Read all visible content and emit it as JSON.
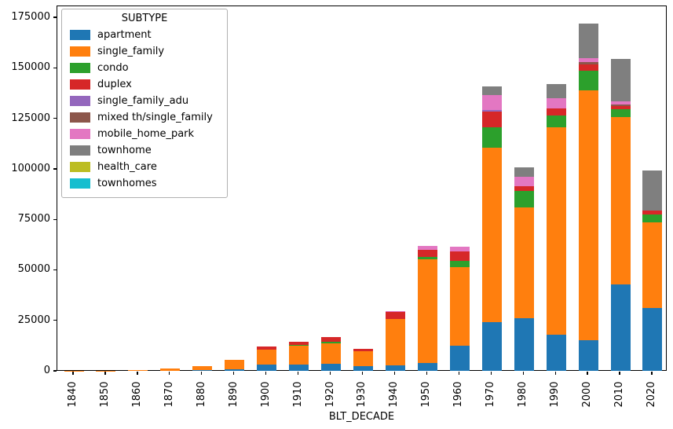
{
  "chart_data": {
    "type": "bar",
    "stacked": true,
    "title": "",
    "xlabel": "BLT_DECADE",
    "ylabel": "",
    "legend_title": "SUBTYPE",
    "legend_position": "upper left",
    "grid": false,
    "categories": [
      "1840",
      "1850",
      "1860",
      "1870",
      "1880",
      "1890",
      "1900",
      "1910",
      "1920",
      "1930",
      "1940",
      "1950",
      "1960",
      "1970",
      "1980",
      "1990",
      "2000",
      "2010",
      "2020"
    ],
    "series": [
      {
        "name": "apartment",
        "color": "#1f77b4",
        "values": [
          0,
          0,
          0,
          0,
          200,
          700,
          3100,
          3100,
          3600,
          2300,
          2700,
          4000,
          12400,
          24100,
          26000,
          18000,
          15000,
          42900,
          31200
        ]
      },
      {
        "name": "single_family",
        "color": "#ff7f0e",
        "values": [
          40,
          80,
          200,
          1000,
          2100,
          4800,
          7400,
          9400,
          10100,
          7500,
          23000,
          51200,
          39100,
          86200,
          54900,
          102700,
          123800,
          82600,
          42400
        ]
      },
      {
        "name": "condo",
        "color": "#2ca02c",
        "values": [
          0,
          0,
          0,
          0,
          0,
          0,
          0,
          300,
          700,
          0,
          0,
          1000,
          3000,
          10400,
          8300,
          5800,
          9700,
          3900,
          3700
        ]
      },
      {
        "name": "duplex",
        "color": "#d62728",
        "values": [
          0,
          0,
          0,
          0,
          0,
          0,
          1700,
          1600,
          2200,
          900,
          3400,
          3500,
          4600,
          7500,
          2300,
          3500,
          3100,
          1600,
          1900
        ]
      },
      {
        "name": "single_family_adu",
        "color": "#9467bd",
        "values": [
          0,
          0,
          0,
          0,
          0,
          0,
          0,
          0,
          0,
          0,
          0,
          0,
          0,
          900,
          0,
          0,
          0,
          0,
          0
        ]
      },
      {
        "name": "mixed th/single_family",
        "color": "#8c564b",
        "values": [
          0,
          0,
          0,
          0,
          0,
          0,
          0,
          0,
          0,
          0,
          0,
          0,
          0,
          0,
          0,
          0,
          1200,
          1000,
          0
        ]
      },
      {
        "name": "mobile_home_park",
        "color": "#e377c2",
        "values": [
          0,
          0,
          0,
          0,
          0,
          0,
          0,
          0,
          0,
          0,
          600,
          2200,
          2300,
          7400,
          4500,
          5000,
          1900,
          1300,
          0
        ]
      },
      {
        "name": "townhome",
        "color": "#7f7f7f",
        "values": [
          0,
          0,
          0,
          0,
          0,
          0,
          0,
          0,
          0,
          0,
          0,
          0,
          0,
          4300,
          4600,
          7000,
          17100,
          21100,
          20100
        ]
      },
      {
        "name": "health_care",
        "color": "#bcbd22",
        "values": [
          0,
          0,
          0,
          0,
          0,
          0,
          0,
          0,
          0,
          0,
          0,
          0,
          0,
          0,
          0,
          0,
          0,
          0,
          0
        ]
      },
      {
        "name": "townhomes",
        "color": "#17becf",
        "values": [
          0,
          0,
          0,
          0,
          0,
          0,
          0,
          0,
          0,
          0,
          0,
          0,
          0,
          0,
          0,
          0,
          0,
          0,
          0
        ]
      }
    ],
    "yticks": [
      0,
      25000,
      50000,
      75000,
      100000,
      125000,
      150000,
      175000
    ],
    "ylim": [
      0,
      180800
    ]
  }
}
